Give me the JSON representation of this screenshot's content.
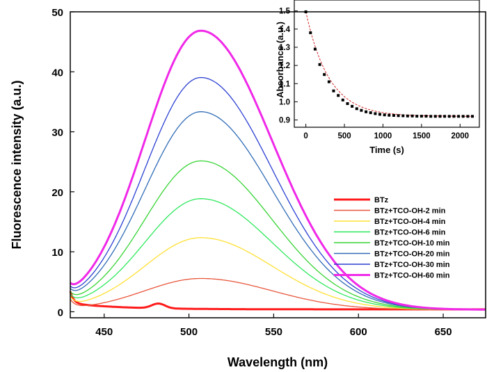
{
  "chart_data": [
    {
      "type": "line",
      "title": "",
      "xlabel": "Wavelength (nm)",
      "ylabel": "Fluorescence intensity (a.u.)",
      "xlim": [
        430,
        675
      ],
      "ylim": [
        -1,
        50
      ],
      "x_ticks": [
        450,
        500,
        550,
        600,
        650
      ],
      "y_ticks": [
        0,
        10,
        20,
        30,
        40,
        50
      ],
      "legend_position": "right",
      "series": [
        {
          "name": "BTz",
          "color": "#ff1a1a",
          "peak": 0,
          "curve": "btz"
        },
        {
          "name": "BTz+TCO-OH-2 min",
          "color": "#e8553a",
          "peak": 5.2,
          "curve": "emission"
        },
        {
          "name": "BTz+TCO-OH-4 min",
          "color": "#ffe033",
          "peak": 12.0,
          "curve": "emission"
        },
        {
          "name": "BTz+TCO-OH-6 min",
          "color": "#2ee85c",
          "peak": 18.5,
          "curve": "emission"
        },
        {
          "name": "BTz+TCO-OH-10 min",
          "color": "#36d433",
          "peak": 24.8,
          "curve": "emission"
        },
        {
          "name": "BTz+TCO-OH-20 min",
          "color": "#2f6bb5",
          "peak": 33.0,
          "curve": "emission"
        },
        {
          "name": "BTz+TCO-OH-30 min",
          "color": "#2a3fd1",
          "peak": 38.7,
          "curve": "emission"
        },
        {
          "name": "BTz+TCO-OH-60 min",
          "color": "#f028e8",
          "peak": 46.5,
          "curve": "emission"
        }
      ]
    },
    {
      "type": "scatter",
      "title": "",
      "xlabel": "Time (s)",
      "ylabel": "Absorbance (a.u.)",
      "xlim": [
        -150,
        2250
      ],
      "ylim": [
        0.86,
        1.56
      ],
      "x_ticks": [
        0,
        500,
        1000,
        1500,
        2000
      ],
      "y_ticks": [
        0.9,
        1.0,
        1.1,
        1.2,
        1.3,
        1.4,
        1.5
      ],
      "fit_color": "#d42020",
      "point_color": "#000000",
      "fit": {
        "a0": 0.92,
        "a1": 0.575,
        "tau": 300
      },
      "points": [
        {
          "x": 0,
          "y": 1.495
        },
        {
          "x": 60,
          "y": 1.38
        },
        {
          "x": 120,
          "y": 1.29
        },
        {
          "x": 180,
          "y": 1.205
        },
        {
          "x": 240,
          "y": 1.15
        },
        {
          "x": 300,
          "y": 1.11
        },
        {
          "x": 360,
          "y": 1.06
        },
        {
          "x": 420,
          "y": 1.035
        },
        {
          "x": 480,
          "y": 1.01
        },
        {
          "x": 540,
          "y": 0.99
        },
        {
          "x": 600,
          "y": 0.975
        },
        {
          "x": 660,
          "y": 0.962
        },
        {
          "x": 720,
          "y": 0.953
        },
        {
          "x": 780,
          "y": 0.945
        },
        {
          "x": 840,
          "y": 0.94
        },
        {
          "x": 900,
          "y": 0.935
        },
        {
          "x": 960,
          "y": 0.931
        },
        {
          "x": 1020,
          "y": 0.928
        },
        {
          "x": 1080,
          "y": 0.926
        },
        {
          "x": 1140,
          "y": 0.925
        },
        {
          "x": 1200,
          "y": 0.924
        },
        {
          "x": 1260,
          "y": 0.923
        },
        {
          "x": 1320,
          "y": 0.922
        },
        {
          "x": 1380,
          "y": 0.922
        },
        {
          "x": 1440,
          "y": 0.921
        },
        {
          "x": 1500,
          "y": 0.921
        },
        {
          "x": 1560,
          "y": 0.921
        },
        {
          "x": 1620,
          "y": 0.92
        },
        {
          "x": 1680,
          "y": 0.92
        },
        {
          "x": 1740,
          "y": 0.92
        },
        {
          "x": 1800,
          "y": 0.92
        },
        {
          "x": 1860,
          "y": 0.92
        },
        {
          "x": 1920,
          "y": 0.92
        },
        {
          "x": 1980,
          "y": 0.92
        },
        {
          "x": 2040,
          "y": 0.92
        },
        {
          "x": 2100,
          "y": 0.92
        },
        {
          "x": 2160,
          "y": 0.92
        }
      ]
    }
  ]
}
